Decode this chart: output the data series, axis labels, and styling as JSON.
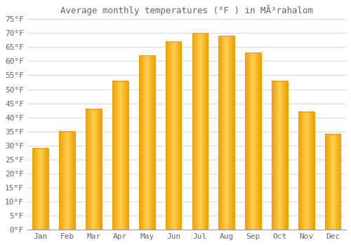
{
  "title": "Average monthly temperatures (°F ) in MÃ³rahalom",
  "months": [
    "Jan",
    "Feb",
    "Mar",
    "Apr",
    "May",
    "Jun",
    "Jul",
    "Aug",
    "Sep",
    "Oct",
    "Nov",
    "Dec"
  ],
  "values": [
    29,
    35,
    43,
    53,
    62,
    67,
    70,
    69,
    63,
    53,
    42,
    34
  ],
  "bar_color_center": "#FFD050",
  "bar_color_edge": "#F0A000",
  "background_color": "#FFFFFF",
  "grid_color": "#DDDDDD",
  "text_color": "#666666",
  "ylim": [
    0,
    75
  ],
  "yticks": [
    0,
    5,
    10,
    15,
    20,
    25,
    30,
    35,
    40,
    45,
    50,
    55,
    60,
    65,
    70,
    75
  ],
  "title_fontsize": 9,
  "tick_fontsize": 8,
  "font_family": "monospace",
  "bar_width": 0.6
}
